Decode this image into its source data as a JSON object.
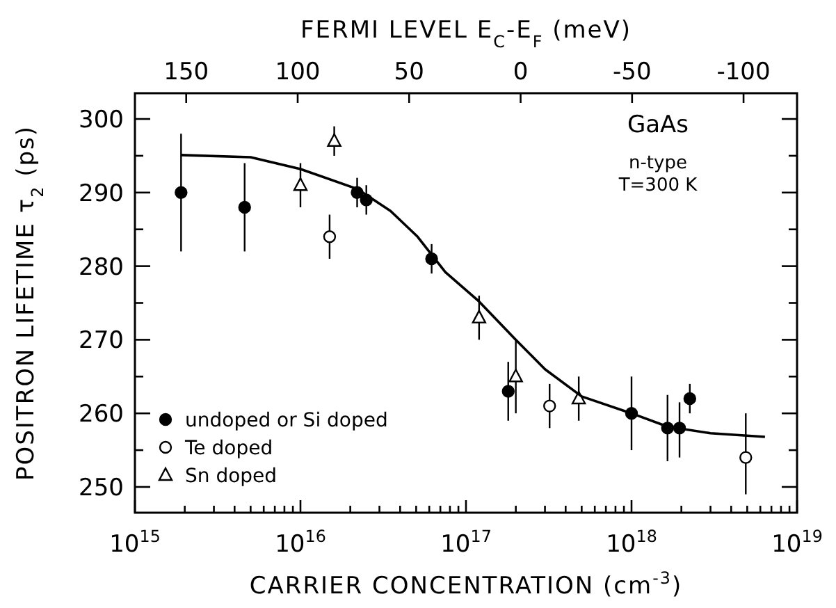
{
  "chart_data": {
    "type": "scatter",
    "xlabel": "CARRIER CONCENTRATION (cm$^{-3}$)",
    "ylabel": "POSITRON LIFETIME τ$_{2}$ (ps)",
    "x2label": "FERMI LEVEL E$_{C}$-E$_{F}$ (meV)",
    "annotations": [
      "GaAs",
      "n-type",
      "T=300 K"
    ],
    "log": "x",
    "xlim": [
      1000000000000000.0,
      1e+19
    ],
    "xticks": [
      {
        "value": 1000000000000000.0,
        "label": "10$^{15}$"
      },
      {
        "value": 2000000000000000.0,
        "label": null
      },
      {
        "value": 3000000000000000.0,
        "label": null
      },
      {
        "value": 4000000000000000.0,
        "label": null
      },
      {
        "value": 5000000000000000.0,
        "label": null
      },
      {
        "value": 6000000000000000.0,
        "label": null
      },
      {
        "value": 7000000000000000.0,
        "label": null
      },
      {
        "value": 8000000000000000.0,
        "label": null
      },
      {
        "value": 9000000000000000.0,
        "label": null
      },
      {
        "value": 1e+16,
        "label": "10$^{16}$"
      },
      {
        "value": 2e+16,
        "label": null
      },
      {
        "value": 3e+16,
        "label": null
      },
      {
        "value": 4e+16,
        "label": null
      },
      {
        "value": 5e+16,
        "label": null
      },
      {
        "value": 6e+16,
        "label": null
      },
      {
        "value": 7e+16,
        "label": null
      },
      {
        "value": 8e+16,
        "label": null
      },
      {
        "value": 9e+16,
        "label": null
      },
      {
        "value": 1e+17,
        "label": "10$^{17}$"
      },
      {
        "value": 2e+17,
        "label": null
      },
      {
        "value": 3e+17,
        "label": null
      },
      {
        "value": 4e+17,
        "label": null
      },
      {
        "value": 5e+17,
        "label": null
      },
      {
        "value": 6e+17,
        "label": null
      },
      {
        "value": 7e+17,
        "label": null
      },
      {
        "value": 8e+17,
        "label": null
      },
      {
        "value": 9e+17,
        "label": null
      },
      {
        "value": 1e+18,
        "label": "10$^{18}$"
      },
      {
        "value": 2e+18,
        "label": null
      },
      {
        "value": 3e+18,
        "label": null
      },
      {
        "value": 4e+18,
        "label": null
      },
      {
        "value": 5e+18,
        "label": null
      },
      {
        "value": 6e+18,
        "label": null
      },
      {
        "value": 7e+18,
        "label": null
      },
      {
        "value": 8e+18,
        "label": null
      },
      {
        "value": 9e+18,
        "label": null
      },
      {
        "value": 1e+19,
        "label": "10$^{19}$"
      }
    ],
    "x2lim": [
      173,
      -124
    ],
    "x2ticks": [
      150,
      100,
      50,
      0,
      -50,
      -100
    ],
    "ylim": [
      246.5,
      303.5
    ],
    "yticks": [
      250,
      {
        "value": 255,
        "label": null
      },
      260,
      {
        "value": 265,
        "label": null
      },
      270,
      {
        "value": 275,
        "label": null
      },
      280,
      {
        "value": 285,
        "label": null
      },
      290,
      {
        "value": 295,
        "label": null
      },
      300
    ],
    "grid": false,
    "legend": "bottom left",
    "series": [
      {
        "name": "undoped or Si doped",
        "color": "#000000",
        "marker": "circle",
        "x": [
          1900000000000000.0,
          4600000000000000.0,
          2.2e+16,
          2.5e+16,
          6.2e+16,
          1.8e+17,
          1e+18,
          1.65e+18,
          1.95e+18,
          2.25e+18
        ],
        "values": [
          290,
          288,
          290,
          289,
          281,
          263,
          260,
          258,
          258,
          262
        ],
        "errors": [
          [
            282,
            298
          ],
          [
            282,
            294
          ],
          [
            288,
            292
          ],
          [
            287,
            291
          ],
          [
            279,
            283
          ],
          [
            259,
            267
          ],
          [
            255,
            265
          ],
          [
            253.5,
            262.5
          ],
          [
            254,
            261.5
          ],
          [
            260,
            264
          ]
        ]
      },
      {
        "name": "Te doped",
        "color": "#000000",
        "marker": "circle",
        "x": [
          1.5e+16,
          3.2e+17,
          4.9e+18
        ],
        "values": [
          284,
          261,
          254
        ],
        "errors": [
          [
            281,
            287
          ],
          [
            258,
            264
          ],
          [
            249,
            260
          ]
        ]
      },
      {
        "name": "Sn doped",
        "color": "#000000",
        "marker": "triangle",
        "x": [
          1e+16,
          1.6e+16,
          1.2e+17,
          2e+17,
          4.8e+17
        ],
        "values": [
          291,
          297,
          273,
          265,
          262
        ],
        "errors": [
          [
            288,
            294
          ],
          [
            295,
            299
          ],
          [
            270,
            276
          ],
          [
            260,
            270
          ],
          [
            259,
            265
          ]
        ]
      },
      {
        "type": "line",
        "color": "#000000",
        "marker": "none",
        "line_style": "solid",
        "x": [
          1900000000000000.0,
          5000000000000000.0,
          1e+16,
          2.2e+16,
          3.5e+16,
          5.1e+16,
          7.5e+16,
          1.2e+17,
          2e+17,
          3e+17,
          5e+17,
          1e+18,
          1.65e+18,
          3e+18,
          6.4e+18
        ],
        "values": [
          295.1,
          294.8,
          293.2,
          290.5,
          287.5,
          284,
          279.2,
          275.2,
          270,
          266,
          262.3,
          260,
          258.2,
          257.3,
          256.8
        ]
      }
    ]
  }
}
